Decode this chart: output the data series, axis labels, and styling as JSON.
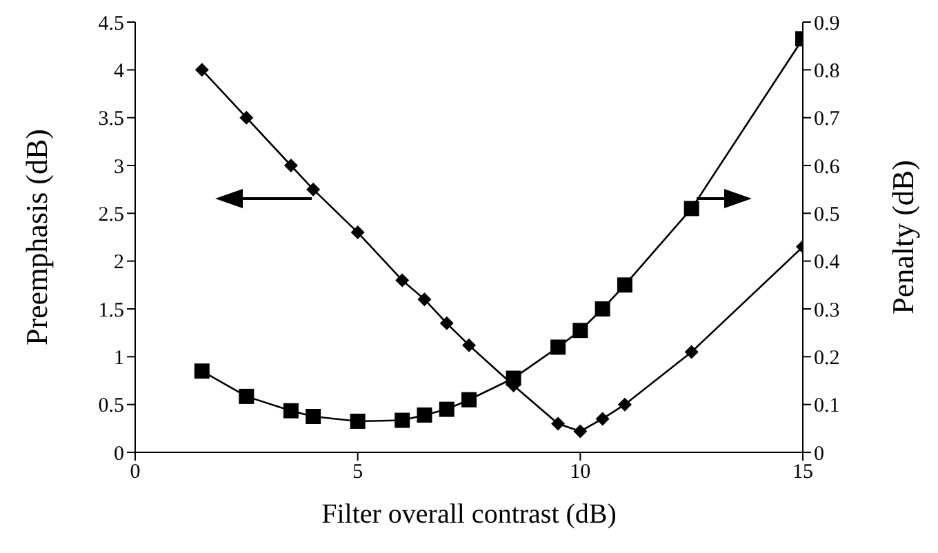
{
  "chart_data": {
    "type": "line",
    "xlabel": "Filter overall contrast (dB)",
    "ylabel": "Preemphasis (dB)",
    "y2label": "Penalty (dB)",
    "x": [
      1.5,
      2.5,
      3.5,
      4,
      5,
      6,
      6.5,
      7,
      7.5,
      8.5,
      9.5,
      10,
      10.5,
      11,
      12.5,
      15
    ],
    "series": [
      {
        "color": "#000000",
        "marker": "diamond",
        "values": [
          4.0,
          3.5,
          3.0,
          2.75,
          2.3,
          1.8,
          1.6,
          1.35,
          1.12,
          0.7,
          0.3,
          0.22,
          0.35,
          0.5,
          1.05,
          2.15
        ]
      },
      {
        "color": "#000000",
        "marker": "square",
        "axis": "y2",
        "values": [
          0.17,
          0.117,
          0.087,
          0.075,
          0.065,
          0.067,
          0.078,
          0.09,
          0.11,
          0.155,
          0.22,
          0.255,
          0.3,
          0.35,
          0.51,
          0.865
        ]
      }
    ],
    "xlim": [
      0,
      15
    ],
    "xticks": [
      0,
      5,
      10,
      15
    ],
    "ylim": [
      0,
      4.5
    ],
    "yticks": [
      0,
      0.5,
      1,
      1.5,
      2,
      2.5,
      3,
      3.5,
      4,
      4.5
    ],
    "y2lim": [
      0,
      0.9
    ],
    "y2ticks": [
      0,
      0.1,
      0.2,
      0.3,
      0.4,
      0.5,
      0.6,
      0.7,
      0.8,
      0.9
    ],
    "grid": false,
    "legend": false
  }
}
